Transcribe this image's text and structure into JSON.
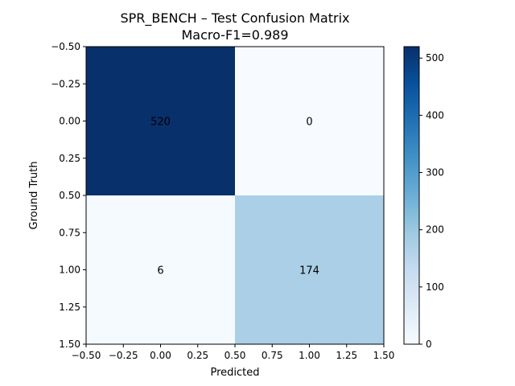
{
  "chart_data": {
    "type": "heatmap",
    "title": "SPR_BENCH – Test Confusion Matrix",
    "subtitle": "Macro-F1=0.989",
    "xlabel": "Predicted",
    "ylabel": "Ground Truth",
    "matrix": [
      [
        520,
        0
      ],
      [
        6,
        174
      ]
    ],
    "xlim": [
      -0.5,
      1.5
    ],
    "ylim": [
      1.5,
      -0.5
    ],
    "x_ticks": [
      -0.5,
      -0.25,
      0.0,
      0.25,
      0.5,
      0.75,
      1.0,
      1.25,
      1.5
    ],
    "x_tick_labels": [
      "−0.50",
      "−0.25",
      "0.00",
      "0.25",
      "0.50",
      "0.75",
      "1.00",
      "1.25",
      "1.50"
    ],
    "y_ticks": [
      -0.5,
      -0.25,
      0.0,
      0.25,
      0.5,
      0.75,
      1.0,
      1.25,
      1.5
    ],
    "y_tick_labels": [
      "−0.50",
      "−0.25",
      "0.00",
      "0.25",
      "0.50",
      "0.75",
      "1.00",
      "1.25",
      "1.50"
    ],
    "colorbar": {
      "range": [
        0,
        520
      ],
      "ticks": [
        0,
        100,
        200,
        300,
        400,
        500
      ],
      "tick_labels": [
        "0",
        "100",
        "200",
        "300",
        "400",
        "500"
      ],
      "colormap": "Blues",
      "stops": [
        "#f7fbff",
        "#deebf7",
        "#c6dbef",
        "#9ecae1",
        "#6baed6",
        "#4292c6",
        "#2171b5",
        "#08519c",
        "#08306b"
      ]
    },
    "grid": false
  }
}
